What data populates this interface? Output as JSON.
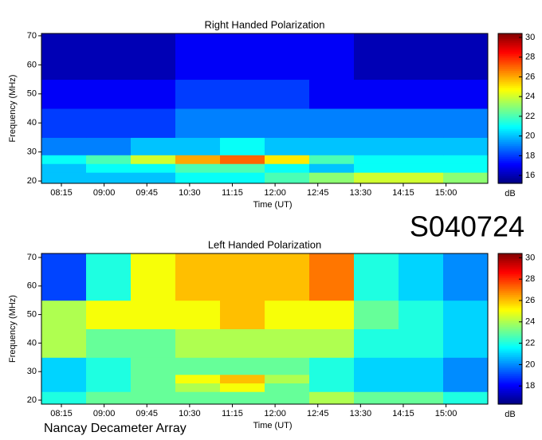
{
  "id_label": "S040724",
  "footer": "Nancay Decameter Array",
  "chart_data": [
    {
      "type": "heatmap",
      "title": "Right Handed Polarization",
      "x_label": "Time (UT)",
      "y_label": "Frequency (MHz)",
      "colorbar_label": "dB",
      "colormap": "jet",
      "xlim": [
        474,
        944
      ],
      "ylim": [
        19.2,
        70.8
      ],
      "clim": [
        15.2,
        30.4
      ],
      "xbins": [
        474,
        521,
        568,
        615,
        662,
        709,
        756,
        803,
        850,
        897,
        944
      ],
      "ybins": [
        19.2,
        23,
        26,
        29,
        35,
        45,
        55,
        70.8
      ],
      "z": [
        [
          20,
          20,
          20,
          21,
          21,
          22,
          23,
          24,
          24,
          23
        ],
        [
          20,
          21,
          21,
          22,
          22,
          21,
          20,
          21,
          21,
          21
        ],
        [
          21,
          22,
          24,
          26,
          27,
          25,
          22,
          21,
          21,
          21
        ],
        [
          19,
          19,
          20,
          20,
          21,
          20,
          20,
          20,
          20,
          20
        ],
        [
          18,
          18,
          18,
          19,
          19,
          19,
          19,
          19,
          19,
          19
        ],
        [
          17,
          17,
          17,
          18,
          18,
          18,
          17,
          17,
          17,
          17
        ],
        [
          16,
          16,
          16,
          17,
          17,
          17,
          17,
          16,
          16,
          16
        ]
      ],
      "xticks": [
        {
          "value": 495,
          "label": "08:15"
        },
        {
          "value": 540,
          "label": "09:00"
        },
        {
          "value": 585,
          "label": "09:45"
        },
        {
          "value": 630,
          "label": "10:30"
        },
        {
          "value": 675,
          "label": "11:15"
        },
        {
          "value": 720,
          "label": "12:00"
        },
        {
          "value": 765,
          "label": "12:45"
        },
        {
          "value": 810,
          "label": "13:30"
        },
        {
          "value": 855,
          "label": "14:15"
        },
        {
          "value": 900,
          "label": "15:00"
        }
      ],
      "yticks": [
        20,
        30,
        40,
        50,
        60,
        70
      ],
      "cticks": [
        16,
        18,
        20,
        22,
        24,
        26,
        28,
        30
      ]
    },
    {
      "type": "heatmap",
      "title": "Left Handed Polarization",
      "x_label": "Time (UT)",
      "y_label": "Frequency (MHz)",
      "colorbar_label": "dB",
      "colormap": "jet",
      "xlim": [
        474,
        944
      ],
      "ylim": [
        18.6,
        71.4
      ],
      "clim": [
        16.3,
        30.4
      ],
      "xbins": [
        474,
        521,
        568,
        615,
        662,
        709,
        756,
        803,
        850,
        897,
        944
      ],
      "ybins": [
        18.6,
        23,
        26,
        29,
        35,
        45,
        55,
        71.4
      ],
      "z": [
        [
          22,
          23,
          23,
          23,
          23,
          23,
          24,
          23,
          23,
          22
        ],
        [
          21,
          22,
          23,
          24,
          25,
          23,
          22,
          21,
          21,
          20
        ],
        [
          21,
          22,
          23,
          25,
          26,
          24,
          22,
          21,
          21,
          20
        ],
        [
          21,
          22,
          23,
          23,
          23,
          23,
          22,
          21,
          21,
          20
        ],
        [
          24,
          23,
          23,
          24,
          24,
          24,
          24,
          22,
          22,
          21
        ],
        [
          24,
          25,
          25,
          25,
          26,
          25,
          25,
          23,
          22,
          21
        ],
        [
          19,
          22,
          25,
          26,
          26,
          26,
          27,
          22,
          21,
          20
        ]
      ],
      "xticks": [
        {
          "value": 495,
          "label": "08:15"
        },
        {
          "value": 540,
          "label": "09:00"
        },
        {
          "value": 585,
          "label": "09:45"
        },
        {
          "value": 630,
          "label": "10:30"
        },
        {
          "value": 675,
          "label": "11:15"
        },
        {
          "value": 720,
          "label": "12:00"
        },
        {
          "value": 765,
          "label": "12:45"
        },
        {
          "value": 810,
          "label": "13:30"
        },
        {
          "value": 855,
          "label": "14:15"
        },
        {
          "value": 900,
          "label": "15:00"
        }
      ],
      "yticks": [
        20,
        30,
        40,
        50,
        60,
        70
      ],
      "cticks": [
        18,
        20,
        22,
        24,
        26,
        28,
        30
      ]
    }
  ]
}
